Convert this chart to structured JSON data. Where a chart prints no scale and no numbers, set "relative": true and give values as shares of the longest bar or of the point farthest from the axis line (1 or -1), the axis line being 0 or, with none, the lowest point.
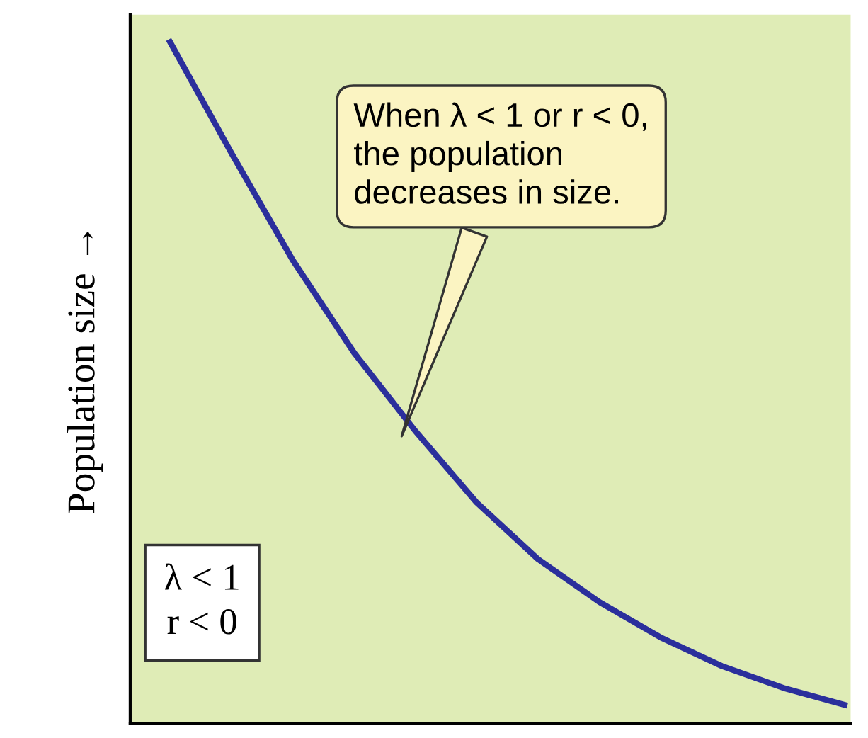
{
  "chart_data": {
    "type": "line",
    "relative": true,
    "ylabel": "Population size →",
    "categories": [
      null,
      null,
      null,
      null,
      null,
      null,
      null,
      null,
      null,
      null,
      null,
      null
    ],
    "series": [
      {
        "color": "#2b2f9c",
        "values": [
          1,
          0.837,
          0.68,
          0.544,
          0.429,
          0.324,
          0.241,
          0.178,
          0.126,
          0.084,
          0.052,
          0.027
        ]
      }
    ],
    "annotations": [
      "When λ < 1 or r < 0,\nthe population\ndecreases in size.",
      "λ < 1\nr < 0"
    ],
    "grid": false,
    "legend": false,
    "marker": "none",
    "line_style": "solid"
  }
}
